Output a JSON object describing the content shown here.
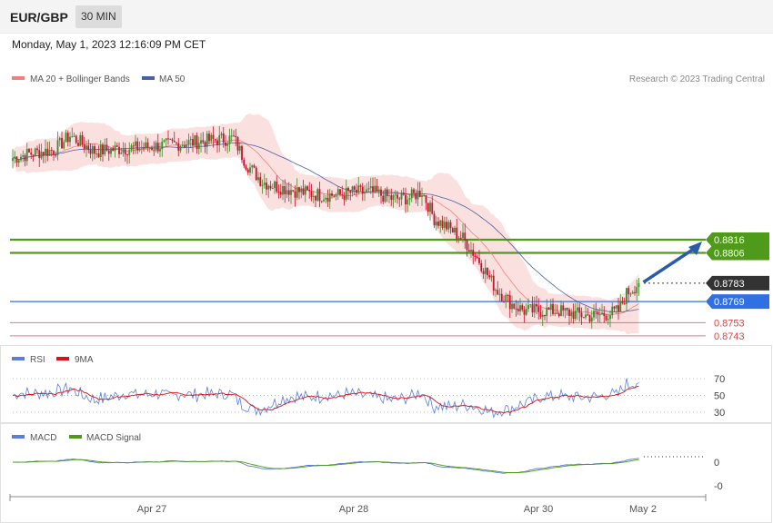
{
  "header": {
    "symbol": "EUR/GBP",
    "interval": "30 MIN",
    "datetime": "Monday, May 1, 2023 12:16:09 PM CET"
  },
  "credit": "Research © 2023 Trading Central",
  "colors": {
    "up": "#3a8a2e",
    "down": "#c8102e",
    "band": "#f7c6c6",
    "ma20": "#f08080",
    "ma50": "#4a5fa6",
    "green_level": "#4f9a1a",
    "blue_level": "#3070e0",
    "red_level": "#e04040",
    "arrow": "#2a5ca8",
    "rsi": "#5b7fd6",
    "rsi_ma": "#e01010",
    "macd": "#5b7fd6",
    "macd_signal": "#4f9a1a",
    "last_price_bg": "#333333"
  },
  "chart_data": [
    {
      "type": "candlestick",
      "title": "EUR/GBP 30 MIN",
      "legend": [
        {
          "name": "MA 20 + Bollinger Bands",
          "color": "#f08080"
        },
        {
          "name": "MA 50",
          "color": "#2a5ca8"
        }
      ],
      "x_ticks": [
        "Apr 27",
        "Apr 28",
        "Apr 30",
        "May 2"
      ],
      "ylim": [
        0.8736,
        0.8936
      ],
      "levels": [
        {
          "label": "0.8816",
          "value": 0.8816,
          "kind": "resistance",
          "color": "#4f9a1a"
        },
        {
          "label": "0.8806",
          "value": 0.8806,
          "kind": "resistance",
          "color": "#4f9a1a"
        },
        {
          "label": "0.8783",
          "value": 0.8783,
          "kind": "last",
          "color": "#333333"
        },
        {
          "label": "0.8769",
          "value": 0.8769,
          "kind": "pivot",
          "color": "#3070e0"
        },
        {
          "label": "0.8753",
          "value": 0.8753,
          "kind": "support",
          "color": "#e04040"
        },
        {
          "label": "0.8743",
          "value": 0.8743,
          "kind": "support",
          "color": "#e04040"
        }
      ],
      "forecast_arrow": {
        "from": 0.8783,
        "to": 0.8816
      },
      "close_anchors": [
        [
          0,
          0.8878
        ],
        [
          10,
          0.8882
        ],
        [
          20,
          0.8884
        ],
        [
          28,
          0.8895
        ],
        [
          40,
          0.8883
        ],
        [
          52,
          0.8885
        ],
        [
          64,
          0.8886
        ],
        [
          76,
          0.8888
        ],
        [
          88,
          0.889
        ],
        [
          100,
          0.8892
        ],
        [
          108,
          0.8893
        ],
        [
          114,
          0.8874
        ],
        [
          122,
          0.886
        ],
        [
          130,
          0.8856
        ],
        [
          142,
          0.8852
        ],
        [
          150,
          0.885
        ],
        [
          160,
          0.885
        ],
        [
          166,
          0.8852
        ],
        [
          176,
          0.8852
        ],
        [
          186,
          0.8847
        ],
        [
          194,
          0.8848
        ],
        [
          200,
          0.8853
        ],
        [
          206,
          0.8832
        ],
        [
          212,
          0.8826
        ],
        [
          220,
          0.8817
        ],
        [
          228,
          0.88
        ],
        [
          236,
          0.8779
        ],
        [
          244,
          0.8767
        ],
        [
          250,
          0.8762
        ],
        [
          256,
          0.8762
        ],
        [
          266,
          0.8762
        ],
        [
          274,
          0.876
        ],
        [
          282,
          0.8758
        ],
        [
          292,
          0.876
        ],
        [
          296,
          0.8762
        ],
        [
          300,
          0.8775
        ],
        [
          306,
          0.8783
        ]
      ]
    },
    {
      "type": "line",
      "title": "RSI",
      "series": [
        {
          "name": "RSI"
        },
        {
          "name": "9MA"
        }
      ],
      "y_ticks": [
        70,
        50,
        30
      ]
    },
    {
      "type": "line",
      "title": "MACD",
      "series": [
        {
          "name": "MACD"
        },
        {
          "name": "MACD Signal"
        }
      ],
      "y_ticks": [
        0,
        0
      ]
    }
  ]
}
